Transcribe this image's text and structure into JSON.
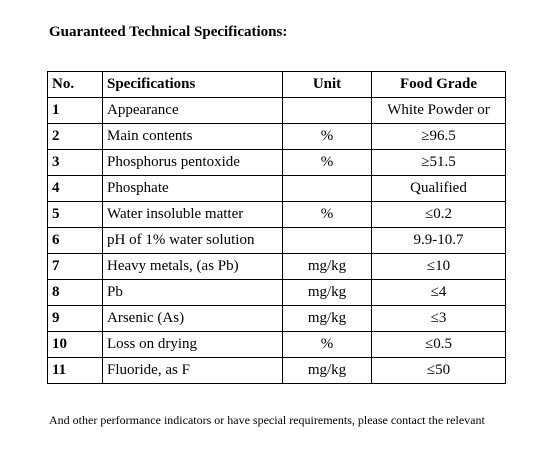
{
  "title": "Guaranteed Technical Specifications:",
  "table": {
    "headers": {
      "no": "No.",
      "spec": "Specifications",
      "unit": "Unit",
      "grade": "Food Grade"
    },
    "rows": [
      {
        "no": "1",
        "spec": "Appearance",
        "unit": "",
        "grade": "White Powder or"
      },
      {
        "no": "2",
        "spec": "Main contents",
        "unit": "%",
        "grade": "≥96.5"
      },
      {
        "no": "3",
        "spec": "Phosphorus pentoxide",
        "unit": "%",
        "grade": "≥51.5"
      },
      {
        "no": "4",
        "spec": "Phosphate",
        "unit": "",
        "grade": "Qualified"
      },
      {
        "no": "5",
        "spec": "Water insoluble matter",
        "unit": "%",
        "grade": "≤0.2"
      },
      {
        "no": "6",
        "spec": "pH of 1% water solution",
        "unit": "",
        "grade": "9.9-10.7"
      },
      {
        "no": "7",
        "spec": "Heavy metals, (as Pb)",
        "unit": "mg/kg",
        "grade": "≤10"
      },
      {
        "no": "8",
        "spec": "Pb",
        "unit": "mg/kg",
        "grade": "≤4"
      },
      {
        "no": "9",
        "spec": "Arsenic (As)",
        "unit": "mg/kg",
        "grade": "≤3"
      },
      {
        "no": "10",
        "spec": "Loss on drying",
        "unit": "%",
        "grade": "≤0.5"
      },
      {
        "no": "11",
        "spec": "Fluoride, as F",
        "unit": "mg/kg",
        "grade": "≤50"
      }
    ]
  },
  "footer": "And other performance indicators or have special requirements, please contact the relevant"
}
